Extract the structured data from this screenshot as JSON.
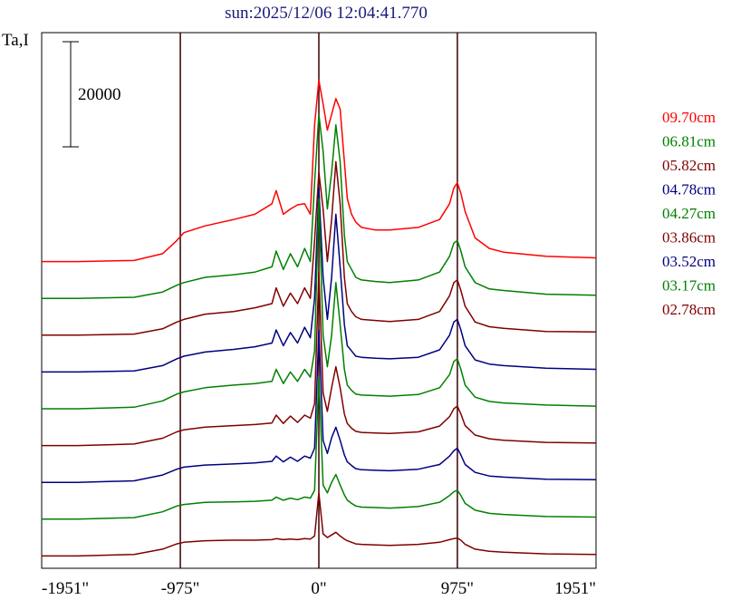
{
  "chart_data": {
    "type": "line",
    "title": "sun:2025/12/06 12:04:41.770",
    "ylabel": "Ta,I",
    "xlabel": "",
    "x_ticks": [
      {
        "value": -1951,
        "label": "-1951\""
      },
      {
        "value": -975,
        "label": "-975\""
      },
      {
        "value": 0,
        "label": "0\""
      },
      {
        "value": 975,
        "label": "975\""
      },
      {
        "value": 1951,
        "label": "1951\""
      }
    ],
    "vertical_lines": [
      -975,
      0,
      975
    ],
    "xlim": [
      -1951,
      1951
    ],
    "scale_bar": {
      "value": 20000,
      "label": "20000"
    },
    "grid": false,
    "legend_position": "right",
    "x": [
      -1951,
      -1700,
      -1300,
      -1100,
      -1000,
      -950,
      -800,
      -600,
      -450,
      -330,
      -300,
      -250,
      -200,
      -150,
      -100,
      -60,
      -30,
      0,
      30,
      60,
      90,
      120,
      150,
      180,
      200,
      230,
      260,
      300,
      400,
      500,
      700,
      850,
      920,
      950,
      975,
      1000,
      1030,
      1100,
      1200,
      1300,
      1600,
      1951
    ],
    "series": [
      {
        "name": "09.70cm",
        "color": "#ff0000",
        "offset": 58000,
        "values": [
          0,
          0,
          200,
          1500,
          4000,
          5500,
          6800,
          8000,
          9000,
          11000,
          13500,
          9000,
          10000,
          10800,
          11000,
          9000,
          26000,
          34500,
          30000,
          25000,
          28000,
          31000,
          29000,
          19000,
          12000,
          9000,
          7500,
          6500,
          6000,
          6000,
          6500,
          8000,
          11000,
          14000,
          15000,
          13000,
          9500,
          4500,
          2500,
          1800,
          1000,
          700
        ]
      },
      {
        "name": "06.81cm",
        "color": "#008000",
        "offset": 51000,
        "values": [
          0,
          0,
          200,
          1200,
          2500,
          3000,
          4000,
          4500,
          5000,
          6000,
          9000,
          5500,
          8500,
          6000,
          9500,
          7000,
          22000,
          35000,
          28000,
          17000,
          24000,
          33000,
          26000,
          12000,
          7000,
          5500,
          4000,
          3500,
          3200,
          3000,
          3500,
          5000,
          8000,
          10500,
          11000,
          9000,
          6000,
          3000,
          1800,
          1500,
          800,
          600
        ]
      },
      {
        "name": "05.82cm",
        "color": "#800000",
        "offset": 44000,
        "values": [
          0,
          0,
          200,
          1200,
          2500,
          3000,
          4000,
          4500,
          5200,
          6000,
          9000,
          5500,
          8000,
          6000,
          9000,
          7000,
          18000,
          31000,
          24000,
          14000,
          22000,
          33000,
          25000,
          11000,
          6000,
          4500,
          3500,
          3000,
          2800,
          2600,
          3000,
          4500,
          7500,
          10000,
          10500,
          8500,
          5500,
          2500,
          1600,
          1300,
          700,
          600
        ]
      },
      {
        "name": "04.78cm",
        "color": "#000080",
        "offset": 37000,
        "values": [
          0,
          0,
          200,
          1200,
          2500,
          3000,
          3800,
          4300,
          4800,
          5500,
          8000,
          5000,
          7500,
          5500,
          8500,
          6500,
          14000,
          35000,
          18000,
          10000,
          18000,
          30000,
          20000,
          9000,
          5000,
          4000,
          3000,
          2800,
          2600,
          2500,
          2800,
          4200,
          7000,
          9500,
          10000,
          8000,
          5000,
          2300,
          1500,
          1200,
          700,
          500
        ]
      },
      {
        "name": "04.27cm",
        "color": "#008000",
        "offset": 30000,
        "values": [
          0,
          0,
          300,
          1500,
          2800,
          3200,
          4000,
          4500,
          4800,
          5200,
          7500,
          4800,
          7000,
          5200,
          7500,
          6000,
          11000,
          40000,
          14000,
          8000,
          14000,
          24000,
          16000,
          7500,
          4500,
          3500,
          2800,
          2600,
          2500,
          2400,
          2700,
          4000,
          6500,
          9000,
          9500,
          7500,
          4500,
          2200,
          1400,
          1100,
          700,
          500
        ]
      },
      {
        "name": "03.86cm",
        "color": "#800000",
        "offset": 23000,
        "values": [
          0,
          0,
          300,
          1400,
          2600,
          3000,
          3500,
          3800,
          4000,
          4300,
          5800,
          4200,
          5600,
          4400,
          5800,
          5200,
          8000,
          33000,
          10000,
          6500,
          11000,
          15000,
          11000,
          6000,
          4200,
          3300,
          2700,
          2500,
          2400,
          2300,
          2600,
          3700,
          5500,
          7000,
          7500,
          6000,
          3800,
          2000,
          1300,
          1000,
          600,
          500
        ]
      },
      {
        "name": "03.52cm",
        "color": "#000080",
        "offset": 16000,
        "values": [
          0,
          0,
          300,
          1400,
          2500,
          2900,
          3300,
          3500,
          3700,
          4000,
          5000,
          3900,
          4800,
          4000,
          5000,
          4600,
          6500,
          29000,
          8000,
          5500,
          8500,
          10500,
          8000,
          5200,
          3900,
          3200,
          2600,
          2400,
          2300,
          2200,
          2500,
          3400,
          5000,
          6000,
          6500,
          5200,
          3400,
          1900,
          1200,
          1000,
          600,
          500
        ]
      },
      {
        "name": "03.17cm",
        "color": "#008000",
        "offset": 9000,
        "values": [
          0,
          0,
          300,
          1400,
          2500,
          2800,
          3200,
          3300,
          3400,
          3600,
          4200,
          3600,
          4000,
          3700,
          4200,
          4000,
          5500,
          27000,
          6500,
          5000,
          7000,
          8500,
          6500,
          4600,
          3600,
          3000,
          2500,
          2300,
          2200,
          2100,
          2400,
          3200,
          4500,
          5200,
          5500,
          4500,
          3000,
          1700,
          1100,
          900,
          500,
          400
        ]
      },
      {
        "name": "02.78cm",
        "color": "#800000",
        "offset": 2000,
        "values": [
          0,
          0,
          300,
          1300,
          2300,
          2600,
          2900,
          3000,
          3000,
          3100,
          3300,
          3100,
          3200,
          3100,
          3300,
          3200,
          3800,
          12000,
          4200,
          3500,
          4000,
          4500,
          3800,
          3200,
          2900,
          2600,
          2300,
          2200,
          2100,
          2000,
          2200,
          2600,
          3100,
          3300,
          3400,
          3000,
          2200,
          1300,
          900,
          700,
          400,
          300
        ]
      }
    ]
  }
}
